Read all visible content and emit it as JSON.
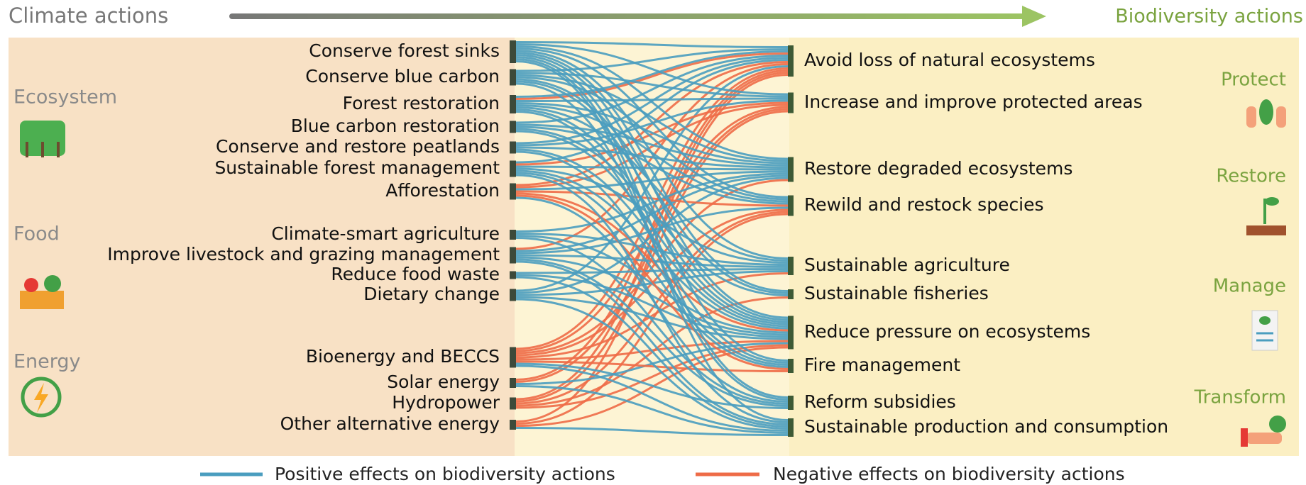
{
  "header": {
    "left_title": "Climate actions",
    "right_title": "Biodiversity actions"
  },
  "climate_groups": [
    {
      "name": "Ecosystem",
      "actions": [
        "Conserve forest sinks",
        "Conserve blue carbon",
        "Forest restoration",
        "Blue carbon restoration",
        "Conserve and restore peatlands",
        "Sustainable forest management",
        "Afforestation"
      ]
    },
    {
      "name": "Food",
      "actions": [
        "Climate-smart agriculture",
        "Improve livestock and grazing management",
        "Reduce food waste",
        "Dietary change"
      ]
    },
    {
      "name": "Energy",
      "actions": [
        "Bioenergy and BECCS",
        "Solar energy",
        "Hydropower",
        "Other alternative energy"
      ]
    }
  ],
  "biodiversity_actions": [
    "Avoid loss of natural ecosystems",
    "Increase and improve protected areas",
    "Restore degraded ecosystems",
    "Rewild and restock species",
    "Sustainable agriculture",
    "Sustainable fisheries",
    "Reduce pressure on ecosystems",
    "Fire management",
    "Reform subsidies",
    "Sustainable production and consumption"
  ],
  "biodiversity_categories": [
    "Protect",
    "Restore",
    "Manage",
    "Transform"
  ],
  "legend": {
    "positive": "Positive effects on biodiversity actions",
    "negative": "Negative effects on biodiversity actions"
  }
}
